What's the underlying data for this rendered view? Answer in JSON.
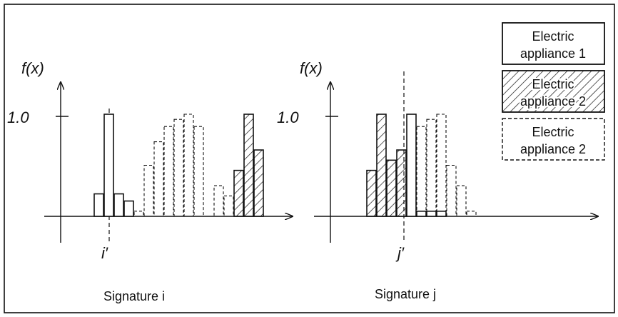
{
  "colors": {
    "ink": "#111111",
    "background": "#ffffff"
  },
  "legend": [
    {
      "label_line1": "Electric",
      "label_line2": "appliance 1",
      "style": "solid"
    },
    {
      "label_line1": "Electric",
      "label_line2": "appliance 2",
      "style": "hatched"
    },
    {
      "label_line1": "Electric",
      "label_line2": "appliance 2",
      "style": "dashed"
    }
  ],
  "panel_i": {
    "caption": "Signature i",
    "ylabel": "f(x)",
    "ytick": "1.0",
    "marker_label": "i′"
  },
  "panel_j": {
    "caption": "Signature j",
    "ylabel": "f(x)",
    "ytick": "1.0",
    "marker_label": "j′"
  },
  "chart_data": [
    {
      "type": "bar",
      "title": "Signature i",
      "ylabel": "f(x)",
      "ylim": [
        0,
        1.0
      ],
      "marker": "i′",
      "series": [
        {
          "name": "Electric appliance 1",
          "style": "solid",
          "bars": [
            {
              "x": 1,
              "y": 0.22
            },
            {
              "x": 2,
              "y": 1.0
            },
            {
              "x": 3,
              "y": 0.22
            },
            {
              "x": 4,
              "y": 0.15
            }
          ]
        },
        {
          "name": "Electric appliance 2",
          "style": "hatched",
          "bars": [
            {
              "x": 15,
              "y": 0.45
            },
            {
              "x": 16,
              "y": 1.0
            },
            {
              "x": 17,
              "y": 0.65
            }
          ]
        },
        {
          "name": "Electric appliance 2",
          "style": "dashed",
          "bars": [
            {
              "x": 5,
              "y": 0.05
            },
            {
              "x": 6,
              "y": 0.5
            },
            {
              "x": 7,
              "y": 0.73
            },
            {
              "x": 8,
              "y": 0.88
            },
            {
              "x": 9,
              "y": 0.95
            },
            {
              "x": 10,
              "y": 1.0
            },
            {
              "x": 11,
              "y": 0.88
            },
            {
              "x": 13,
              "y": 0.3
            },
            {
              "x": 14,
              "y": 0.2
            }
          ]
        }
      ]
    },
    {
      "type": "bar",
      "title": "Signature j",
      "ylabel": "f(x)",
      "ylim": [
        0,
        1.0
      ],
      "marker": "j′",
      "series": [
        {
          "name": "Electric appliance 1",
          "style": "solid",
          "bars": [
            {
              "x": 5,
              "y": 1.0
            },
            {
              "x": 6,
              "y": 0.05
            },
            {
              "x": 7,
              "y": 0.05
            },
            {
              "x": 8,
              "y": 0.05
            }
          ]
        },
        {
          "name": "Electric appliance 2",
          "style": "hatched",
          "bars": [
            {
              "x": 1,
              "y": 0.45
            },
            {
              "x": 2,
              "y": 1.0
            },
            {
              "x": 3,
              "y": 0.55
            },
            {
              "x": 4,
              "y": 0.65
            }
          ]
        },
        {
          "name": "Electric appliance 2",
          "style": "dashed",
          "bars": [
            {
              "x": 6,
              "y": 0.88
            },
            {
              "x": 7,
              "y": 0.95
            },
            {
              "x": 8,
              "y": 1.0
            },
            {
              "x": 9,
              "y": 0.5
            },
            {
              "x": 10,
              "y": 0.3
            },
            {
              "x": 11,
              "y": 0.05
            }
          ]
        }
      ]
    }
  ]
}
